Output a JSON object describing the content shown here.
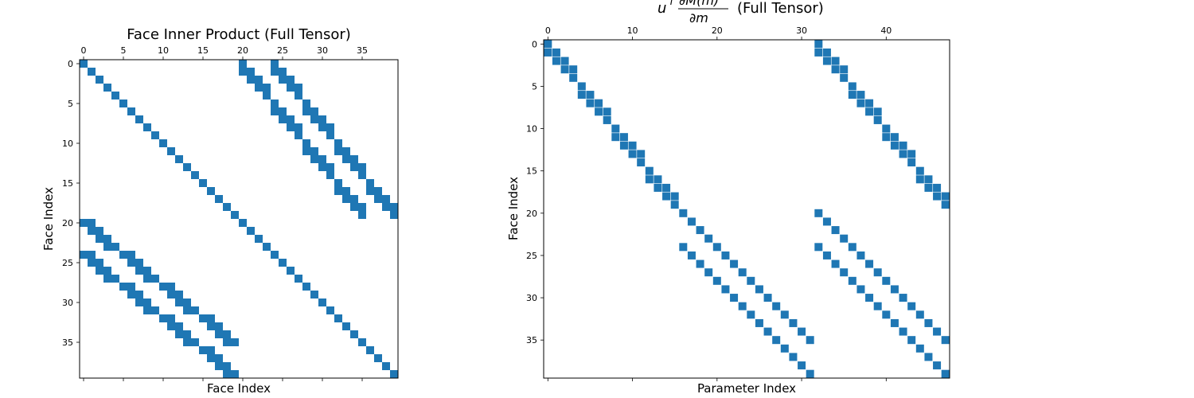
{
  "chart_data": [
    {
      "type": "heatmap",
      "subtype": "sparsity-pattern",
      "title": "Face Inner Product (Full Tensor)",
      "xlabel": "Face Index",
      "ylabel": "Face Index",
      "shape": [
        40,
        40
      ],
      "x_ticks": [
        0,
        5,
        10,
        15,
        20,
        25,
        30,
        35
      ],
      "y_ticks": [
        0,
        5,
        10,
        15,
        20,
        25,
        30,
        35
      ],
      "x_tick_labels": [
        "0",
        "5",
        "10",
        "15",
        "20",
        "25",
        "30",
        "35"
      ],
      "y_tick_labels": [
        "0",
        "5",
        "10",
        "15",
        "20",
        "25",
        "30",
        "35"
      ],
      "x_ticks_position": "top",
      "marker_color": "#1f77b4",
      "pattern": "nonzeros at (i,i); for (i,j) among i in 0..19, j in 20..39 with i = 4k + a + 5*floor(b/2)*0 ... see nonzeros list",
      "nonzeros": [
        [
          0,
          0
        ],
        [
          1,
          1
        ],
        [
          2,
          2
        ],
        [
          3,
          3
        ],
        [
          4,
          4
        ],
        [
          5,
          5
        ],
        [
          6,
          6
        ],
        [
          7,
          7
        ],
        [
          8,
          8
        ],
        [
          9,
          9
        ],
        [
          10,
          10
        ],
        [
          11,
          11
        ],
        [
          12,
          12
        ],
        [
          13,
          13
        ],
        [
          14,
          14
        ],
        [
          15,
          15
        ],
        [
          16,
          16
        ],
        [
          17,
          17
        ],
        [
          18,
          18
        ],
        [
          19,
          19
        ],
        [
          20,
          20
        ],
        [
          21,
          21
        ],
        [
          22,
          22
        ],
        [
          23,
          23
        ],
        [
          24,
          24
        ],
        [
          25,
          25
        ],
        [
          26,
          26
        ],
        [
          27,
          27
        ],
        [
          28,
          28
        ],
        [
          29,
          29
        ],
        [
          30,
          30
        ],
        [
          31,
          31
        ],
        [
          32,
          32
        ],
        [
          33,
          33
        ],
        [
          34,
          34
        ],
        [
          35,
          35
        ],
        [
          36,
          36
        ],
        [
          37,
          37
        ],
        [
          38,
          38
        ],
        [
          39,
          39
        ],
        [
          0,
          20
        ],
        [
          0,
          24
        ],
        [
          1,
          20
        ],
        [
          1,
          21
        ],
        [
          1,
          24
        ],
        [
          1,
          25
        ],
        [
          2,
          21
        ],
        [
          2,
          22
        ],
        [
          2,
          25
        ],
        [
          2,
          26
        ],
        [
          3,
          22
        ],
        [
          3,
          23
        ],
        [
          3,
          26
        ],
        [
          3,
          27
        ],
        [
          4,
          23
        ],
        [
          4,
          27
        ],
        [
          5,
          24
        ],
        [
          5,
          28
        ],
        [
          6,
          24
        ],
        [
          6,
          25
        ],
        [
          6,
          28
        ],
        [
          6,
          29
        ],
        [
          7,
          25
        ],
        [
          7,
          26
        ],
        [
          7,
          29
        ],
        [
          7,
          30
        ],
        [
          8,
          26
        ],
        [
          8,
          27
        ],
        [
          8,
          30
        ],
        [
          8,
          31
        ],
        [
          9,
          27
        ],
        [
          9,
          31
        ],
        [
          10,
          28
        ],
        [
          10,
          32
        ],
        [
          11,
          28
        ],
        [
          11,
          29
        ],
        [
          11,
          32
        ],
        [
          11,
          33
        ],
        [
          12,
          29
        ],
        [
          12,
          30
        ],
        [
          12,
          33
        ],
        [
          12,
          34
        ],
        [
          13,
          30
        ],
        [
          13,
          31
        ],
        [
          13,
          34
        ],
        [
          13,
          35
        ],
        [
          14,
          31
        ],
        [
          14,
          35
        ],
        [
          15,
          32
        ],
        [
          15,
          36
        ],
        [
          16,
          32
        ],
        [
          16,
          33
        ],
        [
          16,
          36
        ],
        [
          16,
          37
        ],
        [
          17,
          33
        ],
        [
          17,
          34
        ],
        [
          17,
          37
        ],
        [
          17,
          38
        ],
        [
          18,
          34
        ],
        [
          18,
          35
        ],
        [
          18,
          38
        ],
        [
          18,
          39
        ],
        [
          19,
          35
        ],
        [
          19,
          39
        ],
        [
          20,
          0
        ],
        [
          20,
          1
        ],
        [
          21,
          1
        ],
        [
          21,
          2
        ],
        [
          22,
          2
        ],
        [
          22,
          3
        ],
        [
          23,
          3
        ],
        [
          23,
          4
        ],
        [
          24,
          0
        ],
        [
          24,
          1
        ],
        [
          24,
          5
        ],
        [
          24,
          6
        ],
        [
          25,
          1
        ],
        [
          25,
          2
        ],
        [
          25,
          6
        ],
        [
          25,
          7
        ],
        [
          26,
          2
        ],
        [
          26,
          3
        ],
        [
          26,
          7
        ],
        [
          26,
          8
        ],
        [
          27,
          3
        ],
        [
          27,
          4
        ],
        [
          27,
          8
        ],
        [
          27,
          9
        ],
        [
          28,
          5
        ],
        [
          28,
          6
        ],
        [
          28,
          10
        ],
        [
          28,
          11
        ],
        [
          29,
          6
        ],
        [
          29,
          7
        ],
        [
          29,
          11
        ],
        [
          29,
          12
        ],
        [
          30,
          7
        ],
        [
          30,
          8
        ],
        [
          30,
          12
        ],
        [
          30,
          13
        ],
        [
          31,
          8
        ],
        [
          31,
          9
        ],
        [
          31,
          13
        ],
        [
          31,
          14
        ],
        [
          32,
          10
        ],
        [
          32,
          11
        ],
        [
          32,
          15
        ],
        [
          32,
          16
        ],
        [
          33,
          11
        ],
        [
          33,
          12
        ],
        [
          33,
          16
        ],
        [
          33,
          17
        ],
        [
          34,
          12
        ],
        [
          34,
          13
        ],
        [
          34,
          17
        ],
        [
          34,
          18
        ],
        [
          35,
          13
        ],
        [
          35,
          14
        ],
        [
          35,
          18
        ],
        [
          35,
          19
        ],
        [
          36,
          15
        ],
        [
          36,
          16
        ],
        [
          37,
          16
        ],
        [
          37,
          17
        ],
        [
          38,
          17
        ],
        [
          38,
          18
        ],
        [
          39,
          18
        ],
        [
          39,
          19
        ]
      ]
    },
    {
      "type": "heatmap",
      "subtype": "sparsity-pattern",
      "title_math": "u^T ∂M(m)/∂m",
      "title_suffix": "(Full Tensor)",
      "xlabel": "Parameter Index",
      "ylabel": "Face Index",
      "shape": [
        40,
        48
      ],
      "x_ticks": [
        0,
        10,
        20,
        30,
        40
      ],
      "y_ticks": [
        0,
        5,
        10,
        15,
        20,
        25,
        30,
        35
      ],
      "x_tick_labels": [
        "0",
        "10",
        "20",
        "30",
        "40"
      ],
      "y_tick_labels": [
        "0",
        "5",
        "10",
        "15",
        "20",
        "25",
        "30",
        "35"
      ],
      "x_ticks_position": "top",
      "marker_color": "#1f77b4",
      "nonzeros": [
        [
          0,
          0
        ],
        [
          1,
          0
        ],
        [
          1,
          1
        ],
        [
          2,
          1
        ],
        [
          2,
          2
        ],
        [
          3,
          2
        ],
        [
          3,
          3
        ],
        [
          4,
          3
        ],
        [
          5,
          4
        ],
        [
          6,
          4
        ],
        [
          6,
          5
        ],
        [
          7,
          5
        ],
        [
          7,
          6
        ],
        [
          8,
          6
        ],
        [
          8,
          7
        ],
        [
          9,
          7
        ],
        [
          10,
          8
        ],
        [
          11,
          8
        ],
        [
          11,
          9
        ],
        [
          12,
          9
        ],
        [
          12,
          10
        ],
        [
          13,
          10
        ],
        [
          13,
          11
        ],
        [
          14,
          11
        ],
        [
          15,
          12
        ],
        [
          16,
          12
        ],
        [
          16,
          13
        ],
        [
          17,
          13
        ],
        [
          17,
          14
        ],
        [
          18,
          14
        ],
        [
          18,
          15
        ],
        [
          19,
          15
        ],
        [
          0,
          32
        ],
        [
          1,
          32
        ],
        [
          1,
          33
        ],
        [
          2,
          33
        ],
        [
          2,
          34
        ],
        [
          3,
          34
        ],
        [
          3,
          35
        ],
        [
          4,
          35
        ],
        [
          5,
          36
        ],
        [
          6,
          36
        ],
        [
          6,
          37
        ],
        [
          7,
          37
        ],
        [
          7,
          38
        ],
        [
          8,
          38
        ],
        [
          8,
          39
        ],
        [
          9,
          39
        ],
        [
          10,
          40
        ],
        [
          11,
          40
        ],
        [
          11,
          41
        ],
        [
          12,
          41
        ],
        [
          12,
          42
        ],
        [
          13,
          42
        ],
        [
          13,
          43
        ],
        [
          14,
          43
        ],
        [
          15,
          44
        ],
        [
          16,
          44
        ],
        [
          16,
          45
        ],
        [
          17,
          45
        ],
        [
          17,
          46
        ],
        [
          18,
          46
        ],
        [
          18,
          47
        ],
        [
          19,
          47
        ],
        [
          20,
          32
        ],
        [
          21,
          33
        ],
        [
          22,
          34
        ],
        [
          23,
          35
        ],
        [
          24,
          36
        ],
        [
          25,
          37
        ],
        [
          26,
          38
        ],
        [
          27,
          39
        ],
        [
          28,
          40
        ],
        [
          29,
          41
        ],
        [
          30,
          42
        ],
        [
          31,
          43
        ],
        [
          32,
          44
        ],
        [
          33,
          45
        ],
        [
          34,
          46
        ],
        [
          35,
          47
        ],
        [
          24,
          16
        ],
        [
          25,
          17
        ],
        [
          26,
          18
        ],
        [
          27,
          19
        ],
        [
          28,
          20
        ],
        [
          29,
          21
        ],
        [
          30,
          22
        ],
        [
          31,
          23
        ],
        [
          32,
          24
        ],
        [
          33,
          25
        ],
        [
          34,
          26
        ],
        [
          35,
          27
        ],
        [
          36,
          28
        ],
        [
          37,
          29
        ],
        [
          38,
          30
        ],
        [
          39,
          31
        ],
        [
          24,
          32
        ],
        [
          25,
          33
        ],
        [
          26,
          34
        ],
        [
          27,
          35
        ],
        [
          28,
          36
        ],
        [
          29,
          37
        ],
        [
          30,
          38
        ],
        [
          31,
          39
        ],
        [
          32,
          40
        ],
        [
          33,
          41
        ],
        [
          34,
          42
        ],
        [
          35,
          43
        ],
        [
          36,
          44
        ],
        [
          37,
          45
        ],
        [
          38,
          46
        ],
        [
          39,
          47
        ],
        [
          20,
          16
        ],
        [
          21,
          17
        ],
        [
          22,
          18
        ],
        [
          23,
          19
        ],
        [
          24,
          20
        ],
        [
          25,
          21
        ],
        [
          26,
          22
        ],
        [
          27,
          23
        ],
        [
          28,
          24
        ],
        [
          29,
          25
        ],
        [
          30,
          26
        ],
        [
          31,
          27
        ],
        [
          32,
          28
        ],
        [
          33,
          29
        ],
        [
          34,
          30
        ],
        [
          35,
          31
        ]
      ]
    }
  ]
}
